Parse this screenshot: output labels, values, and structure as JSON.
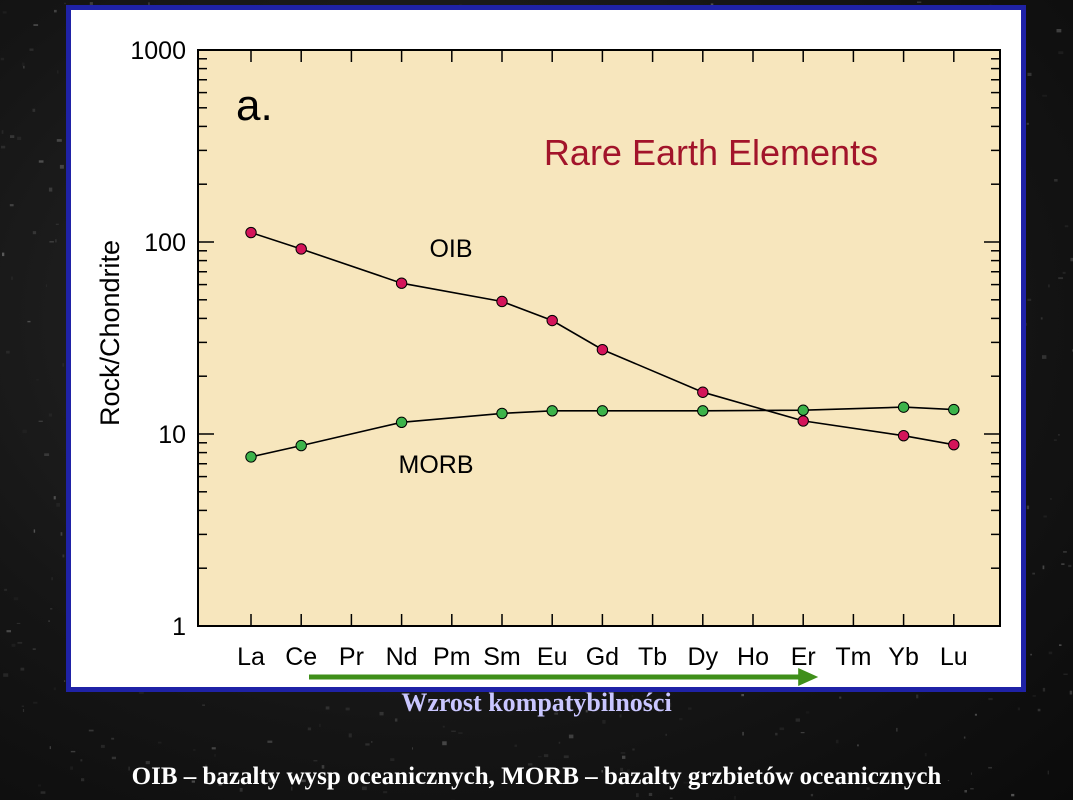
{
  "chart_data": {
    "type": "line",
    "panel_label": "a.",
    "title": "Rare Earth Elements",
    "xlabel": "",
    "ylabel": "Rock/Chondrite",
    "yscale": "log",
    "ylim": [
      1,
      1000
    ],
    "yticks": [
      "1",
      "10",
      "100",
      "1000"
    ],
    "categories": [
      "La",
      "Ce",
      "Pr",
      "Nd",
      "Pm",
      "Sm",
      "Eu",
      "Gd",
      "Tb",
      "Dy",
      "Ho",
      "Er",
      "Tm",
      "Yb",
      "Lu"
    ],
    "grid": false,
    "series": [
      {
        "name": "OIB",
        "color": "#d4145a",
        "points": [
          {
            "x": "La",
            "y": 112
          },
          {
            "x": "Ce",
            "y": 92
          },
          {
            "x": "Nd",
            "y": 61
          },
          {
            "x": "Sm",
            "y": 49
          },
          {
            "x": "Eu",
            "y": 39
          },
          {
            "x": "Gd",
            "y": 27.5
          },
          {
            "x": "Dy",
            "y": 16.5
          },
          {
            "x": "Er",
            "y": 11.7
          },
          {
            "x": "Yb",
            "y": 9.8
          },
          {
            "x": "Lu",
            "y": 8.8
          }
        ]
      },
      {
        "name": "MORB",
        "color": "#3cb34a",
        "points": [
          {
            "x": "La",
            "y": 7.6
          },
          {
            "x": "Ce",
            "y": 8.7
          },
          {
            "x": "Nd",
            "y": 11.5
          },
          {
            "x": "Sm",
            "y": 12.8
          },
          {
            "x": "Eu",
            "y": 13.2
          },
          {
            "x": "Gd",
            "y": 13.2
          },
          {
            "x": "Dy",
            "y": 13.2
          },
          {
            "x": "Er",
            "y": 13.3
          },
          {
            "x": "Yb",
            "y": 13.8
          },
          {
            "x": "Lu",
            "y": 13.4
          }
        ]
      }
    ]
  },
  "arrow": {
    "color": "#3f8f1a",
    "from": "La",
    "to": "Er"
  },
  "arrow_caption": "Wzrost kompatybilności",
  "bottom_note": "OIB – bazalty wysp oceanicznych, MORB – bazalty grzbietów oceanicznych",
  "colors": {
    "plot_bg": "#f7e6bd",
    "frame": "#1f22a6"
  }
}
